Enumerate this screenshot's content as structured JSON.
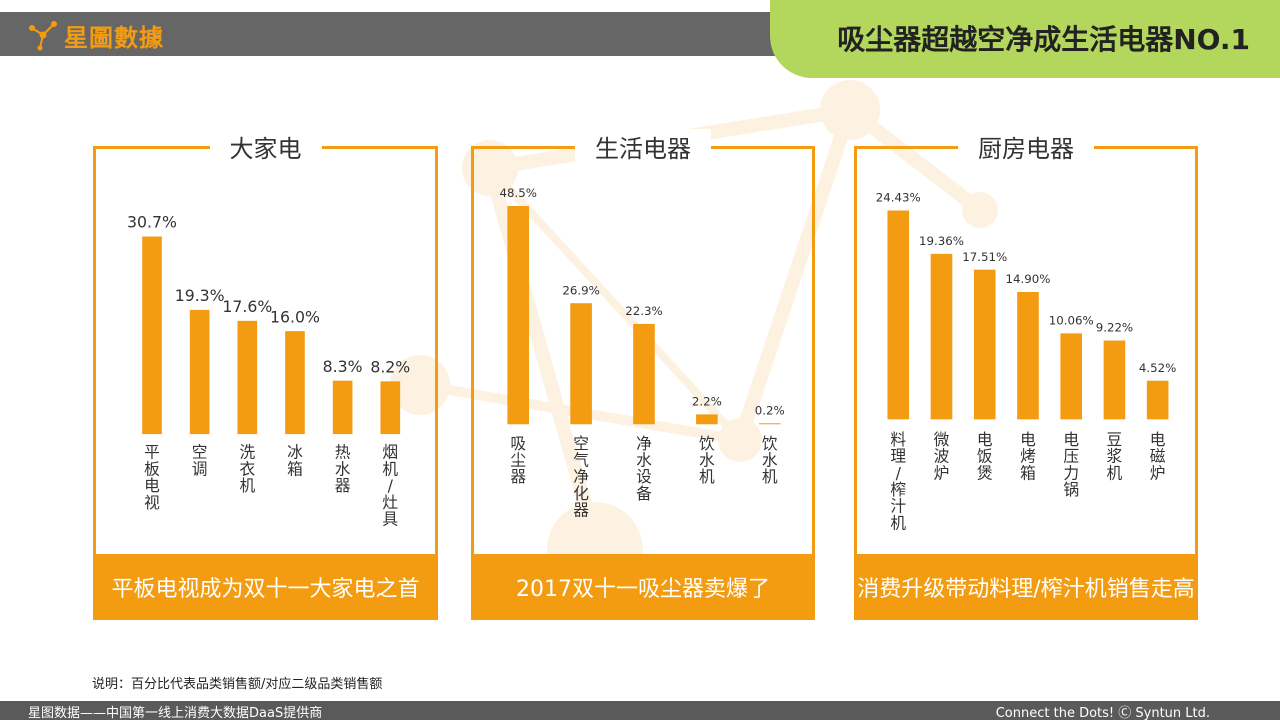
{
  "header": {
    "logo_text": "星圖數據",
    "page_title": "吸尘器超越空净成生活电器NO.1"
  },
  "colors": {
    "accent": "#f39c12",
    "header_green": "#b3d65c",
    "header_gray": "#666666"
  },
  "note": "说明：百分比代表品类销售额/对应二级品类销售额",
  "footer": {
    "left": "星图数据——中国第一线上消费大数据DaaS提供商",
    "right": "Connect the Dots! Ⓒ Syntun Ltd."
  },
  "chart_data": [
    {
      "type": "bar",
      "title": "大家电",
      "caption": "平板电视成为双十一大家电之首",
      "categories": [
        "平板电视",
        "空调",
        "洗衣机",
        "冰箱",
        "热水器",
        "烟机/灶具"
      ],
      "values": [
        30.7,
        19.3,
        17.6,
        16.0,
        8.3,
        8.2
      ],
      "labels": [
        "30.7%",
        "19.3%",
        "17.6%",
        "16.0%",
        "8.3%",
        "8.2%"
      ],
      "unit": "%"
    },
    {
      "type": "bar",
      "title": "生活电器",
      "caption": "2017双十一吸尘器卖爆了",
      "categories": [
        "吸尘器",
        "空气净化器",
        "净水设备",
        "饮水机",
        "饮水机"
      ],
      "values": [
        48.5,
        26.9,
        22.3,
        2.2,
        0.2
      ],
      "labels": [
        "48.5%",
        "26.9%",
        "22.3%",
        "2.2%",
        "0.2%"
      ],
      "unit": "%"
    },
    {
      "type": "bar",
      "title": "厨房电器",
      "caption": "消费升级带动料理/榨汁机销售走高",
      "categories": [
        "料理/榨汁机",
        "微波炉",
        "电饭煲",
        "电烤箱",
        "电压力锅",
        "豆浆机",
        "电磁炉"
      ],
      "values": [
        24.43,
        19.36,
        17.51,
        14.9,
        10.06,
        9.22,
        4.52
      ],
      "labels": [
        "24.43%",
        "19.36%",
        "17.51%",
        "14.90%",
        "10.06%",
        "9.22%",
        "4.52%"
      ],
      "unit": "%"
    }
  ]
}
